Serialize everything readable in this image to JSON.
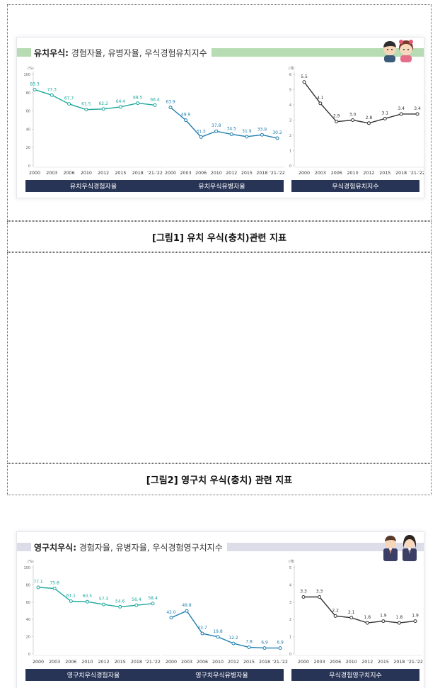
{
  "figure1": {
    "header_bold": "유치우식:",
    "header_rest": " 경험자율, 유병자율, 우식경험유치지수",
    "caption": "[그림1] 유치 우식(충치)관련 지표",
    "accent": "#1aa89c",
    "bar_color": "#b7dbb3",
    "people_icon": "child-boy-girl-icon"
  },
  "figure2": {
    "header_bold": "영구치우식:",
    "header_rest": " 경험자율, 유병자율, 우식경험영구치지수",
    "caption": "[그림2] 영구치 우식(충치) 관련 지표",
    "accent": "#1aa89c",
    "bar_color": "#dcdde8",
    "people_icon": "student-boy-girl-icon"
  },
  "chart_data": [
    {
      "type": "line",
      "group": "figure1",
      "title": "유치우식경험자율",
      "x": [
        "2000",
        "2003",
        "2006",
        "2010",
        "2012",
        "2015",
        "2018",
        "'21-'22"
      ],
      "values": [
        83.3,
        77.3,
        67.7,
        61.5,
        62.2,
        64.4,
        68.5,
        66.4
      ],
      "labels": [
        "83.3",
        "77.3",
        "67.7",
        "61.5",
        "62.2",
        "64.4",
        "68.5",
        "66.4"
      ],
      "unit": "(%)",
      "ylim": [
        0,
        100
      ],
      "yticks": [
        "0",
        "20",
        "40",
        "60",
        "80",
        "100"
      ],
      "color": "#1aa89c"
    },
    {
      "type": "line",
      "group": "figure1",
      "title": "유치우식유병자율",
      "x": [
        "2000",
        "2003",
        "2006",
        "2010",
        "2012",
        "2015",
        "2018",
        "'21-'22"
      ],
      "values": [
        63.9,
        49.9,
        31.5,
        37.8,
        34.5,
        31.9,
        33.9,
        30.2
      ],
      "labels": [
        "63.9",
        "49.9",
        "31.5",
        "37.8",
        "34.5",
        "31.9",
        "33.9",
        "30.2"
      ],
      "ylim": [
        0,
        100
      ],
      "color": "#1f7fb0"
    },
    {
      "type": "line",
      "group": "figure1",
      "title": "우식경험유치지수",
      "x": [
        "2000",
        "2003",
        "2006",
        "2010",
        "2012",
        "2015",
        "2018",
        "'21-'22"
      ],
      "values": [
        5.5,
        4.1,
        2.9,
        3.0,
        2.8,
        3.1,
        3.4,
        3.4
      ],
      "labels": [
        "5.5",
        "4.1",
        "2.9",
        "3.0",
        "2.8",
        "3.1",
        "3.4",
        "3.4"
      ],
      "unit": "(개)",
      "ylim": [
        0,
        6
      ],
      "yticks": [
        "0",
        "1",
        "2",
        "3",
        "4",
        "5",
        "6"
      ],
      "color": "#333333"
    },
    {
      "type": "line",
      "group": "figure2",
      "title": "영구치우식경험자율",
      "x": [
        "2000",
        "2003",
        "2006",
        "2010",
        "2012",
        "2015",
        "2018",
        "'21-'22"
      ],
      "values": [
        77.1,
        75.8,
        61.1,
        60.5,
        57.3,
        54.6,
        56.4,
        58.4
      ],
      "labels": [
        "77.1",
        "75.8",
        "61.1",
        "60.5",
        "57.3",
        "54.6",
        "56.4",
        "58.4"
      ],
      "unit": "(%)",
      "ylim": [
        0,
        100
      ],
      "yticks": [
        "0",
        "20",
        "40",
        "60",
        "80",
        "100"
      ],
      "color": "#1aa89c"
    },
    {
      "type": "line",
      "group": "figure2",
      "title": "영구치우식유병자율",
      "x": [
        "2000",
        "2003",
        "2006",
        "2010",
        "2012",
        "2015",
        "2018",
        "'21-'22"
      ],
      "values": [
        42.0,
        49.8,
        23.7,
        19.8,
        12.2,
        7.8,
        6.9,
        6.9
      ],
      "labels": [
        "42.0",
        "49.8",
        "23.7",
        "19.8",
        "12.2",
        "7.8",
        "6.9",
        "6.9"
      ],
      "ylim": [
        0,
        100
      ],
      "color": "#1f7fb0"
    },
    {
      "type": "line",
      "group": "figure2",
      "title": "우식경험영구치지수",
      "x": [
        "2000",
        "2003",
        "2006",
        "2010",
        "2012",
        "2015",
        "2018",
        "'21-'22"
      ],
      "values": [
        3.3,
        3.3,
        2.2,
        2.1,
        1.8,
        1.9,
        1.8,
        1.9
      ],
      "labels": [
        "3.3",
        "3.3",
        "2.2",
        "2.1",
        "1.8",
        "1.9",
        "1.8",
        "1.9"
      ],
      "unit": "(개)",
      "ylim": [
        0,
        5
      ],
      "yticks": [
        "0",
        "1",
        "2",
        "3",
        "4",
        "5"
      ],
      "color": "#333333"
    }
  ]
}
